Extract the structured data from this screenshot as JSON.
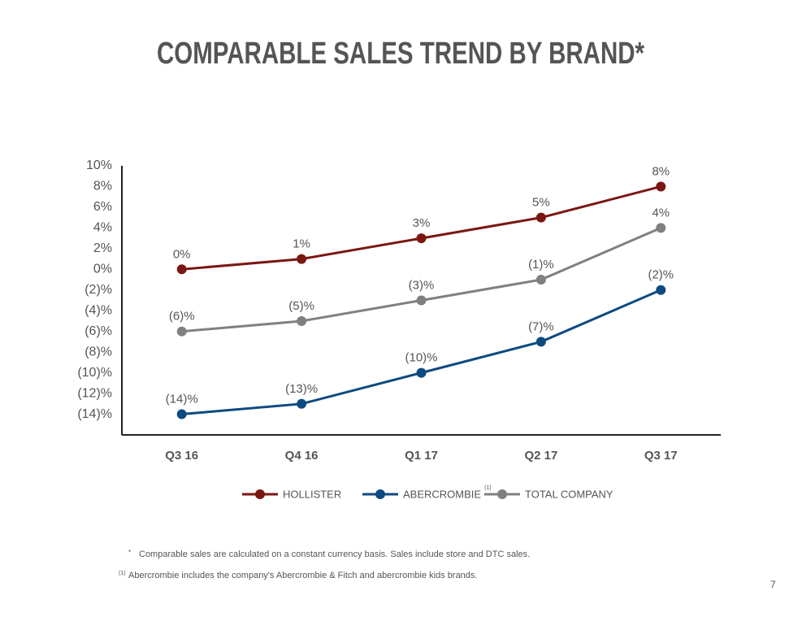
{
  "chart_data": {
    "type": "line",
    "title": "COMPARABLE SALES TREND BY BRAND*",
    "categories": [
      "Q3 16",
      "Q4 16",
      "Q1 17",
      "Q2 17",
      "Q3 17"
    ],
    "series": [
      {
        "name": "HOLLISTER",
        "color": "#7a1712",
        "values": [
          0,
          1,
          3,
          5,
          8
        ],
        "value_labels": [
          "0%",
          "1%",
          "3%",
          "5%",
          "8%"
        ]
      },
      {
        "name": "ABERCROMBIE",
        "legend_note": "(1)",
        "color": "#0d4a80",
        "values": [
          -14,
          -13,
          -10,
          -7,
          -2
        ],
        "value_labels": [
          "(14)%",
          "(13)%",
          "(10)%",
          "(7)%",
          "(2)%"
        ]
      },
      {
        "name": "TOTAL COMPANY",
        "color": "#808080",
        "values": [
          -6,
          -5,
          -3,
          -1,
          4
        ],
        "value_labels": [
          "(6)%",
          "(5)%",
          "(3)%",
          "(1)%",
          "4%"
        ]
      }
    ],
    "ylim": [
      -16,
      10
    ],
    "yticks": [
      {
        "value": -14,
        "label": "(14)%"
      },
      {
        "value": -12,
        "label": "(12)%"
      },
      {
        "value": -10,
        "label": "(10)%"
      },
      {
        "value": -8,
        "label": "(8)%"
      },
      {
        "value": -6,
        "label": "(6)%"
      },
      {
        "value": -4,
        "label": "(4)%"
      },
      {
        "value": -2,
        "label": "(2)%"
      },
      {
        "value": 0,
        "label": "0%"
      },
      {
        "value": 2,
        "label": "2%"
      },
      {
        "value": 4,
        "label": "4%"
      },
      {
        "value": 6,
        "label": "6%"
      },
      {
        "value": 8,
        "label": "8%"
      },
      {
        "value": 10,
        "label": "10%"
      }
    ],
    "grid": false,
    "legend": "bottom"
  },
  "footnotes": [
    {
      "marker": "*",
      "text": "Comparable sales are calculated on a constant currency basis.  Sales include store and DTC sales."
    },
    {
      "marker": "(1)",
      "text": "Abercrombie includes the company's Abercrombie & Fitch and abercrombie kids brands."
    }
  ],
  "page_number": "7"
}
